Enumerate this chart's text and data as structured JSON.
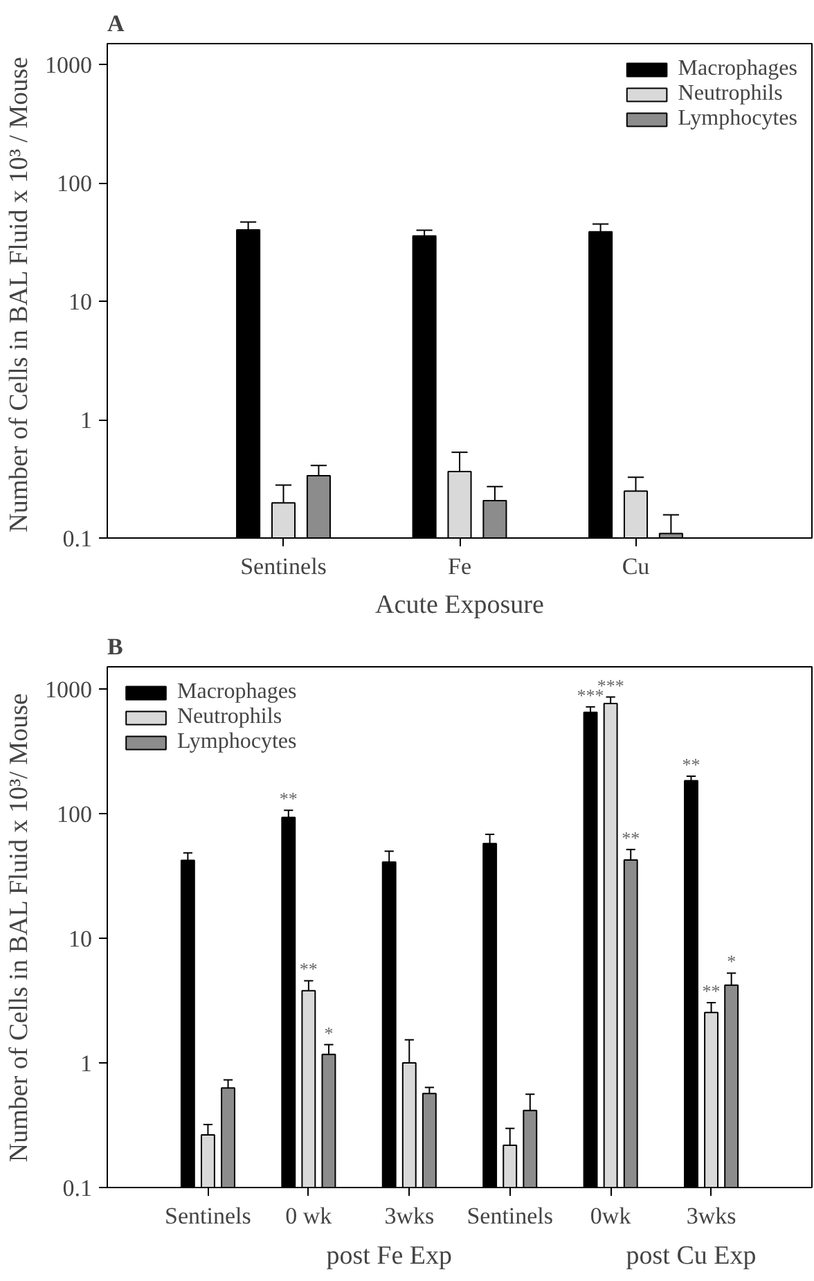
{
  "chart_data": [
    {
      "type": "bar",
      "title": "A",
      "xlabel": "Acute Exposure",
      "ylabel": "Number of Cells in BAL Fluid  x 10³ / Mouse",
      "categories": [
        "Sentinels",
        "Fe",
        "Cu"
      ],
      "series": [
        {
          "name": "Macrophages",
          "color": "#000000",
          "values": [
            40,
            35.6,
            38.6
          ],
          "errors": [
            [
              40,
              46.7
            ],
            [
              35.6,
              39.8
            ],
            [
              38.6,
              44.9
            ]
          ]
        },
        {
          "name": "Neutrophils",
          "color": "#d9d9d9",
          "values": [
            0.198,
            0.364,
            0.249
          ],
          "errors": [
            [
              0.198,
              0.28
            ],
            [
              0.364,
              0.53
            ],
            [
              0.249,
              0.326
            ]
          ]
        },
        {
          "name": "Lymphocytes",
          "color": "#8c8c8c",
          "values": [
            0.336,
            0.207,
            0.109
          ],
          "errors": [
            [
              0.336,
              0.41
            ],
            [
              0.207,
              0.272
            ],
            [
              0.109,
              0.157
            ]
          ]
        }
      ],
      "log": true,
      "ylim": [
        0.1,
        1500
      ],
      "yticks": [
        0.1,
        1,
        10,
        100,
        1000
      ],
      "grid": false,
      "legend": "top right"
    },
    {
      "type": "bar",
      "title": "B",
      "ylabel": "Number of Cells in BAL Fluid x 10³/ Mouse",
      "categories": [
        "Sentinels",
        "0 wk",
        "3wks",
        "Sentinels",
        "0wk",
        "3wks"
      ],
      "series": [
        {
          "name": "Macrophages",
          "color": "#000000",
          "values": [
            42,
            93,
            40.7,
            57.4,
            647,
            183
          ],
          "errors": [
            [
              42,
              48.3
            ],
            [
              93,
              106
            ],
            [
              40.7,
              49.8
            ],
            [
              57.4,
              68
            ],
            [
              647,
              716
            ],
            [
              183,
              199
            ]
          ],
          "value_labels": [
            null,
            "**",
            null,
            null,
            "***",
            "**"
          ]
        },
        {
          "name": "Neutrophils",
          "color": "#d9d9d9",
          "values": [
            0.264,
            3.79,
            1.0,
            0.218,
            762,
            2.53
          ],
          "errors": [
            [
              0.264,
              0.32
            ],
            [
              3.79,
              4.55
            ],
            [
              1.0,
              1.53
            ],
            [
              0.218,
              0.298
            ],
            [
              762,
              859
            ],
            [
              2.53,
              3.04
            ]
          ],
          "value_labels": [
            null,
            "**",
            null,
            null,
            "***",
            "**"
          ]
        },
        {
          "name": "Lymphocytes",
          "color": "#8c8c8c",
          "values": [
            0.628,
            1.17,
            0.568,
            0.415,
            42.4,
            4.2
          ],
          "errors": [
            [
              0.628,
              0.73
            ],
            [
              1.17,
              1.4
            ],
            [
              0.568,
              0.635
            ],
            [
              0.415,
              0.56
            ],
            [
              42.4,
              51.4
            ],
            [
              4.2,
              5.24
            ]
          ],
          "value_labels": [
            null,
            "*",
            null,
            null,
            "**",
            "*"
          ]
        }
      ],
      "annotations": [
        "post Fe Exp",
        "post Cu Exp"
      ],
      "log": true,
      "ylim": [
        0.1,
        1500
      ],
      "yticks": [
        0.1,
        1,
        10,
        100,
        1000
      ],
      "grid": false,
      "legend": "top left"
    }
  ]
}
